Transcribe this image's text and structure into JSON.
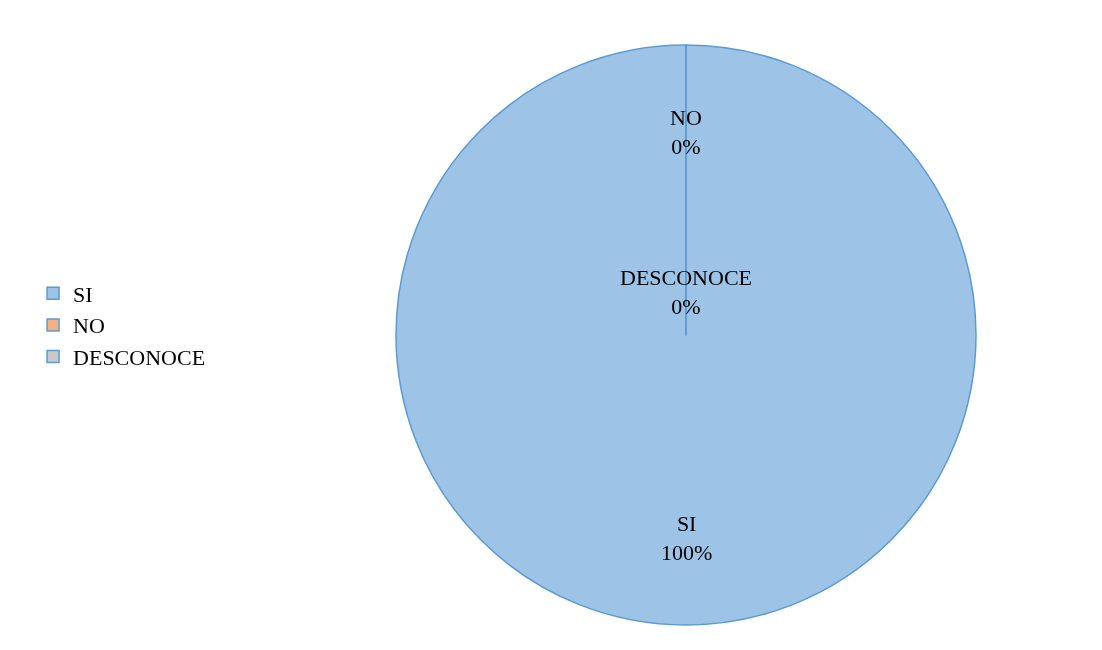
{
  "chart_data": {
    "type": "pie",
    "categories": [
      "SI",
      "NO",
      "DESCONOCE"
    ],
    "values": [
      100,
      0,
      0
    ],
    "colors": [
      "#9dc3e6",
      "#f4b183",
      "#c9c9c9"
    ],
    "value_labels": [
      "100%",
      "0%",
      "0%"
    ],
    "legend": "left"
  }
}
